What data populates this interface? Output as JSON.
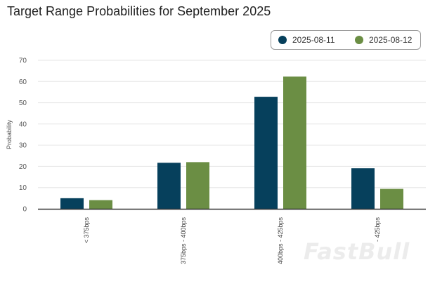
{
  "chart_data": {
    "type": "bar",
    "title": "Target Range Probabilities for September 2025",
    "xlabel": "",
    "ylabel": "Probability",
    "ylim": [
      0,
      70
    ],
    "yticks": [
      0,
      10,
      20,
      30,
      40,
      50,
      60,
      70
    ],
    "categories": [
      "< 375bps",
      "375bps - 400bps",
      "400bps - 425bps",
      "- 425bps"
    ],
    "series": [
      {
        "name": "2025-08-11",
        "color": "#06405c",
        "values": [
          5,
          21.7,
          52.8,
          19.1
        ]
      },
      {
        "name": "2025-08-12",
        "color": "#6b8e44",
        "values": [
          4.1,
          22,
          62.3,
          9.4
        ]
      }
    ],
    "legend_position": "top-right",
    "grid": true
  },
  "watermark": "FastBull"
}
